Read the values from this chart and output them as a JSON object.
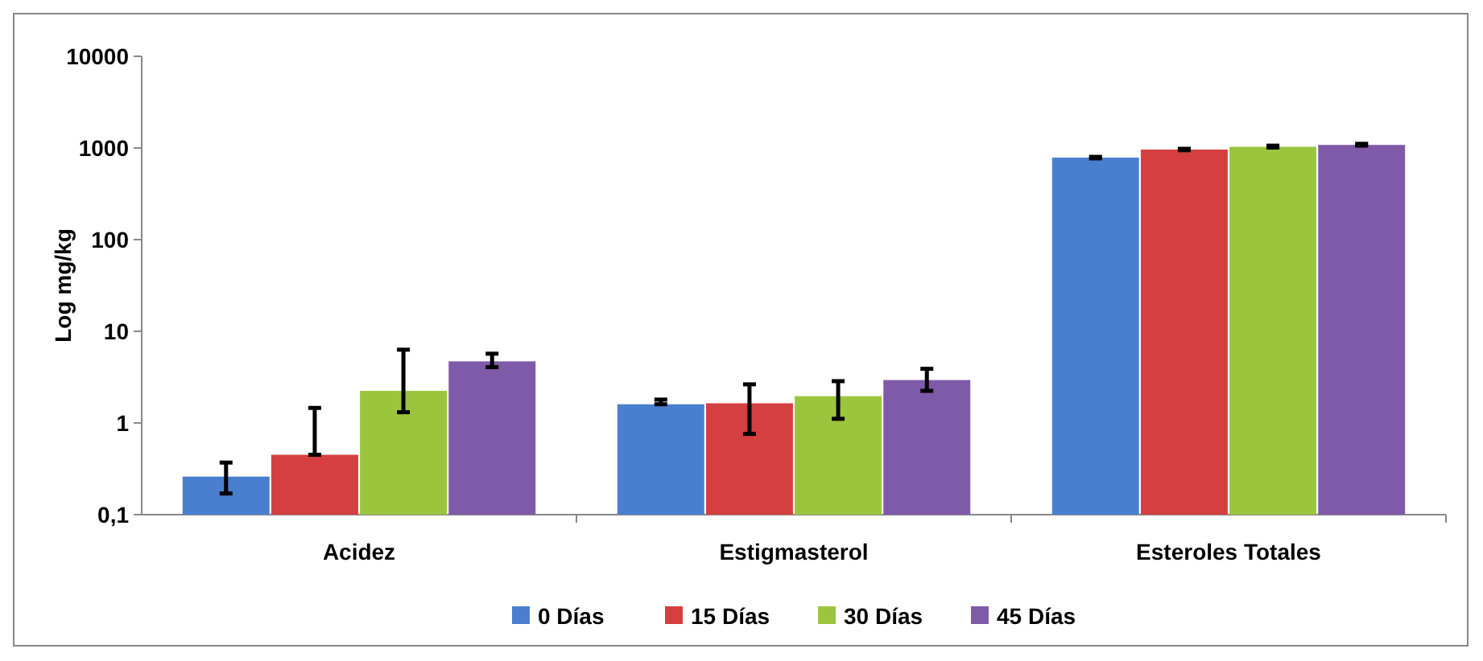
{
  "chart_data": {
    "type": "bar",
    "ylabel": "Log mg/kg",
    "log": true,
    "legend": "bottom",
    "ylim": [
      0.1,
      10000
    ],
    "yticks": [
      {
        "value": 0.1,
        "label": "0,1"
      },
      1,
      10,
      100,
      1000,
      10000
    ],
    "categories": [
      "Acidez",
      "Estigmasterol",
      "Esteroles Totales"
    ],
    "series": [
      {
        "name": "0 Días",
        "color": "#4a7fcf",
        "values": [
          0.26,
          1.6,
          785
        ],
        "errors": [
          [
            0.17,
            0.37
          ],
          [
            1.6,
            1.8
          ],
          [
            770,
            800
          ]
        ]
      },
      {
        "name": "15 Días",
        "color": "#d63f3f",
        "values": [
          0.45,
          1.64,
          960
        ],
        "errors": [
          [
            0.45,
            1.46
          ],
          [
            0.76,
            2.64
          ],
          [
            945,
            980
          ]
        ]
      },
      {
        "name": "30 Días",
        "color": "#9bc53d",
        "values": [
          2.24,
          1.96,
          1030
        ],
        "errors": [
          [
            1.31,
            6.3
          ],
          [
            1.11,
            2.86
          ],
          [
            1010,
            1060
          ]
        ]
      },
      {
        "name": "45 Días",
        "color": "#7f5aa8",
        "values": [
          4.7,
          2.94,
          1080
        ],
        "errors": [
          [
            4.06,
            5.7
          ],
          [
            2.24,
            3.9
          ],
          [
            1060,
            1110
          ]
        ]
      }
    ]
  }
}
